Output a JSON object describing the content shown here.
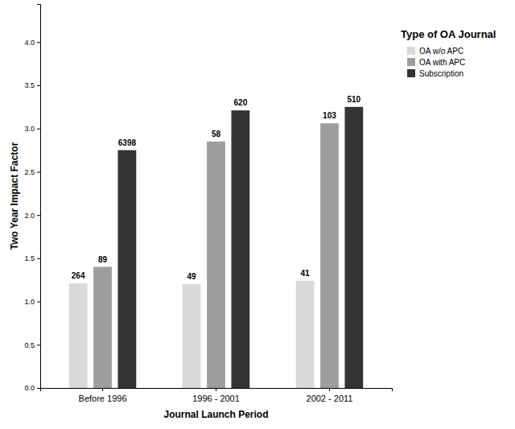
{
  "chart_data": {
    "type": "bar",
    "x_label": "Journal Launch Period",
    "y_label": "Two Year Impact Factor",
    "legend_title": "Type of OA Journal",
    "legend": "right",
    "grid": false,
    "categories": [
      "Before 1996",
      "1996 - 2001",
      "2002 - 2011"
    ],
    "series": [
      {
        "name": "OA w/o APC",
        "color": "#d9d9d9",
        "values": [
          1.21,
          1.2,
          1.24
        ],
        "counts": [
          264,
          49,
          41
        ]
      },
      {
        "name": "OA with APC",
        "color": "#9e9e9e",
        "values": [
          1.4,
          2.85,
          3.06
        ],
        "counts": [
          89,
          58,
          103
        ]
      },
      {
        "name": "Subscription",
        "color": "#333333",
        "values": [
          2.75,
          3.21,
          3.25
        ],
        "counts": [
          6398,
          620,
          510
        ]
      }
    ],
    "ylim": [
      0,
      4.44
    ],
    "yticks": [
      {
        "value": 0,
        "label": "0.0"
      },
      {
        "value": 0.5,
        "label": "0.5"
      },
      {
        "value": 1,
        "label": "1.0"
      },
      {
        "value": 1.5,
        "label": "1.5"
      },
      {
        "value": 2,
        "label": "2.0"
      },
      {
        "value": 2.5,
        "label": "2.5"
      },
      {
        "value": 3,
        "label": "3.0"
      },
      {
        "value": 3.5,
        "label": "3.5"
      },
      {
        "value": 4,
        "label": "4.0"
      }
    ]
  }
}
